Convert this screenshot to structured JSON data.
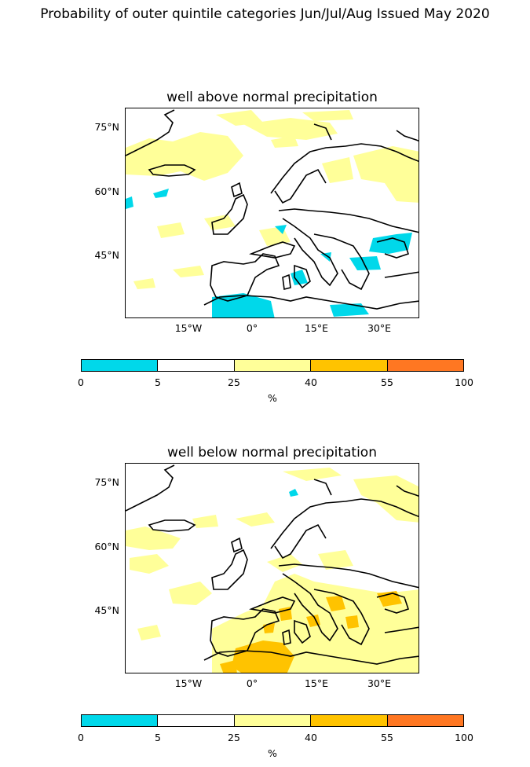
{
  "title": "Probability of outer quintile categories Jun/Jul/Aug Issued May 2020",
  "panels": [
    {
      "title": "well above normal precipitation",
      "lat_labels": [
        "75°N",
        "60°N",
        "45°N"
      ],
      "lon_labels": [
        "15°W",
        "0°",
        "15°E",
        "30°E"
      ]
    },
    {
      "title": "well below normal precipitation",
      "lat_labels": [
        "75°N",
        "60°N",
        "45°N"
      ],
      "lon_labels": [
        "15°W",
        "0°",
        "15°E",
        "30°E"
      ]
    }
  ],
  "colorbar": {
    "ticks": [
      "0",
      "5",
      "25",
      "40",
      "55",
      "100"
    ],
    "unit": "%",
    "colors": [
      "#00d8ea",
      "#ffffff",
      "#ffff99",
      "#ffc300",
      "#ff7722"
    ]
  },
  "palette": {
    "coast": "#000000",
    "low": "#00d8ea",
    "mid": "#ffff99",
    "high": "#ffc300"
  }
}
